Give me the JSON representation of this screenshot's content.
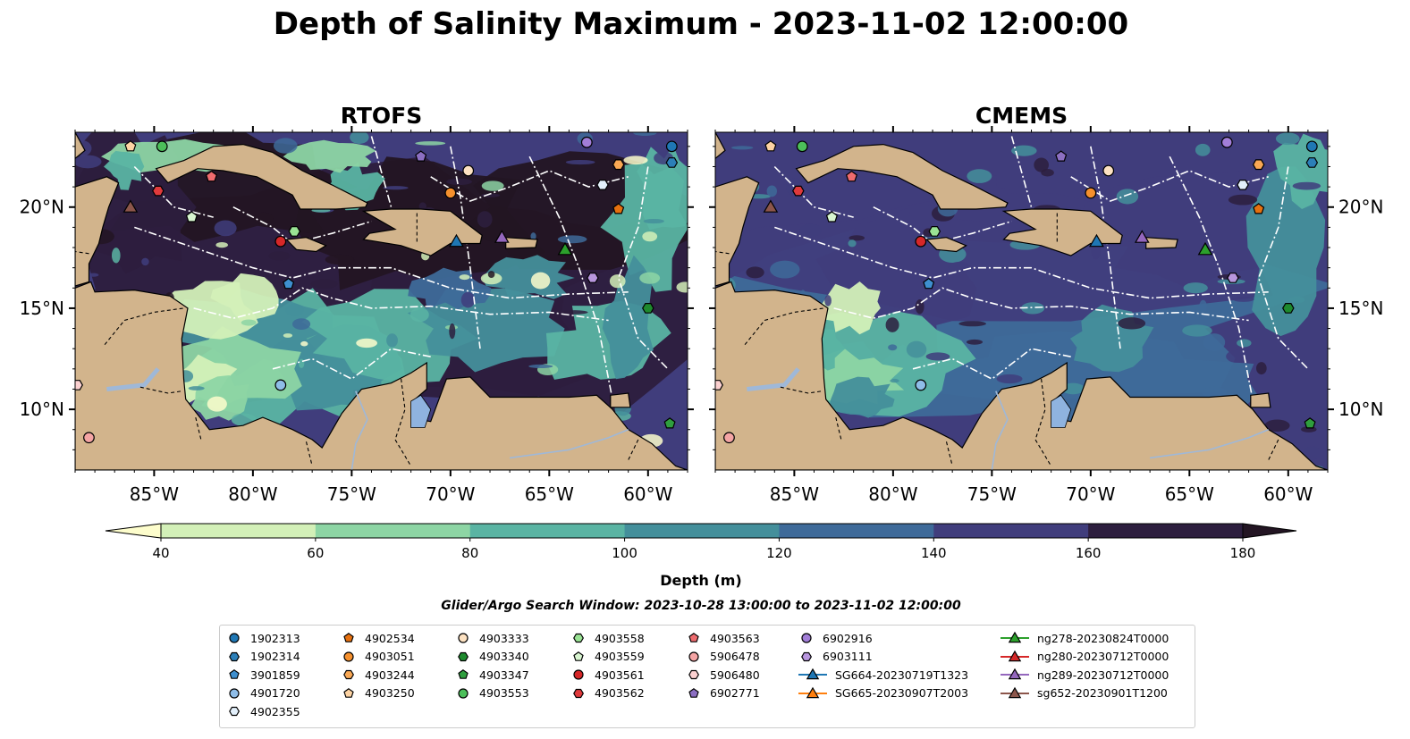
{
  "title": "Depth of Salinity Maximum - 2023-11-02 12:00:00",
  "panels": [
    {
      "name": "RTOFS"
    },
    {
      "name": "CMEMS"
    }
  ],
  "colors": {
    "land": "#d2b48c",
    "lake": "#8fb3df",
    "rivers": "#9fb8d8",
    "levels": [
      "#fdfdcc",
      "#d3f0b8",
      "#8dd5a4",
      "#5ab4a3",
      "#448f9b",
      "#3e6a99",
      "#403d7c",
      "#2d1e3e",
      "#231523"
    ]
  },
  "chart_data": {
    "type": "heatmap",
    "panels": [
      "RTOFS",
      "CMEMS"
    ],
    "colorbar": {
      "label": "Depth (m)",
      "levels": [
        40,
        60,
        80,
        100,
        120,
        140,
        160,
        180
      ],
      "tick_labels": [
        "40",
        "60",
        "80",
        "100",
        "120",
        "140",
        "160",
        "180"
      ],
      "extend": "both"
    },
    "xaxis": {
      "range": [
        -89,
        -58
      ],
      "ticks": [
        -85,
        -80,
        -75,
        -70,
        -65,
        -60
      ],
      "tick_labels": [
        "85°W",
        "80°W",
        "75°W",
        "70°W",
        "65°W",
        "60°W"
      ]
    },
    "yaxis": {
      "range": [
        7,
        23.7
      ],
      "ticks": [
        10,
        15,
        20
      ],
      "tick_labels": [
        "10°N",
        "15°N",
        "20°N"
      ]
    },
    "subtitle": "Glider/Argo Search Window: 2023-10-28 13:00:00 to 2023-11-02 12:00:00",
    "platforms": [
      {
        "name": "1902313",
        "kind": "argo",
        "marker": "circle",
        "color": "#1f77b4",
        "lon": -58.8,
        "lat": 23.0
      },
      {
        "name": "1902314",
        "kind": "argo",
        "marker": "hexagon",
        "color": "#2c7fb8",
        "lon": -58.8,
        "lat": 22.2
      },
      {
        "name": "3901859",
        "kind": "argo",
        "marker": "pentagon",
        "color": "#3e8fcf",
        "lon": -78.2,
        "lat": 16.2
      },
      {
        "name": "4901720",
        "kind": "argo",
        "marker": "circle",
        "color": "#8fbde8",
        "lon": -78.6,
        "lat": 11.2
      },
      {
        "name": "4902355",
        "kind": "argo",
        "marker": "hexagon",
        "color": "#e3f0fb",
        "lon": -62.3,
        "lat": 21.1
      },
      {
        "name": "4902534",
        "kind": "argo",
        "marker": "pentagon",
        "color": "#e6700f",
        "lon": -61.5,
        "lat": 19.9
      },
      {
        "name": "4903051",
        "kind": "argo",
        "marker": "circle",
        "color": "#f5902e",
        "lon": -70.0,
        "lat": 20.7
      },
      {
        "name": "4903244",
        "kind": "argo",
        "marker": "hexagon",
        "color": "#f9a854",
        "lon": -61.5,
        "lat": 22.1
      },
      {
        "name": "4903250",
        "kind": "argo",
        "marker": "pentagon",
        "color": "#fdd3a3",
        "lon": -86.2,
        "lat": 23.0
      },
      {
        "name": "4903333",
        "kind": "argo",
        "marker": "circle",
        "color": "#fde2c2",
        "lon": -69.1,
        "lat": 21.8
      },
      {
        "name": "4903340",
        "kind": "argo",
        "marker": "hexagon",
        "color": "#1e8a2e",
        "lon": -60.0,
        "lat": 15.0
      },
      {
        "name": "4903347",
        "kind": "argo",
        "marker": "pentagon",
        "color": "#2f9e3e",
        "lon": -58.9,
        "lat": 9.3
      },
      {
        "name": "4903553",
        "kind": "argo",
        "marker": "circle",
        "color": "#4cbf5a",
        "lon": -84.6,
        "lat": 23.0
      },
      {
        "name": "4903558",
        "kind": "argo",
        "marker": "hexagon",
        "color": "#9ae394",
        "lon": -77.9,
        "lat": 18.8
      },
      {
        "name": "4903559",
        "kind": "argo",
        "marker": "pentagon",
        "color": "#d8f5d0",
        "lon": -83.1,
        "lat": 19.5
      },
      {
        "name": "4903561",
        "kind": "argo",
        "marker": "circle",
        "color": "#d62728",
        "lon": -78.6,
        "lat": 18.3
      },
      {
        "name": "4903562",
        "kind": "argo",
        "marker": "hexagon",
        "color": "#e03a3c",
        "lon": -84.8,
        "lat": 20.8
      },
      {
        "name": "4903563",
        "kind": "argo",
        "marker": "pentagon",
        "color": "#ee6b6e",
        "lon": -82.1,
        "lat": 21.5
      },
      {
        "name": "5906478",
        "kind": "argo",
        "marker": "circle",
        "color": "#f4a4a4",
        "lon": -88.3,
        "lat": 8.6
      },
      {
        "name": "5906480",
        "kind": "argo",
        "marker": "hexagon",
        "color": "#fbd0d0",
        "lon": -88.9,
        "lat": 11.2
      },
      {
        "name": "6902771",
        "kind": "argo",
        "marker": "pentagon",
        "color": "#8c6fc2",
        "lon": -71.5,
        "lat": 22.5
      },
      {
        "name": "6902916",
        "kind": "argo",
        "marker": "circle",
        "color": "#a27ed8",
        "lon": -63.1,
        "lat": 23.2
      },
      {
        "name": "6903111",
        "kind": "argo",
        "marker": "hexagon",
        "color": "#b896de",
        "lon": -62.8,
        "lat": 16.5
      },
      {
        "name": "SG664-20230719T1323",
        "kind": "glider",
        "marker": "triangle",
        "color": "#1f77b4",
        "lon": -69.7,
        "lat": 18.3
      },
      {
        "name": "SG665-20230907T2003",
        "kind": "glider",
        "marker": "triangle",
        "color": "#ff7f0e",
        "lon": null,
        "lat": null
      },
      {
        "name": "ng278-20230824T0000",
        "kind": "glider",
        "marker": "triangle",
        "color": "#2ca02c",
        "lon": -64.2,
        "lat": 17.9
      },
      {
        "name": "ng280-20230712T0000",
        "kind": "glider",
        "marker": "triangle",
        "color": "#d62728",
        "lon": null,
        "lat": null
      },
      {
        "name": "ng289-20230712T0000",
        "kind": "glider",
        "marker": "triangle",
        "color": "#9467bd",
        "lon": -67.4,
        "lat": 18.5
      },
      {
        "name": "sg652-20230901T1200",
        "kind": "glider",
        "marker": "triangle",
        "color": "#8c564b",
        "lon": -86.2,
        "lat": 20.0
      }
    ]
  }
}
